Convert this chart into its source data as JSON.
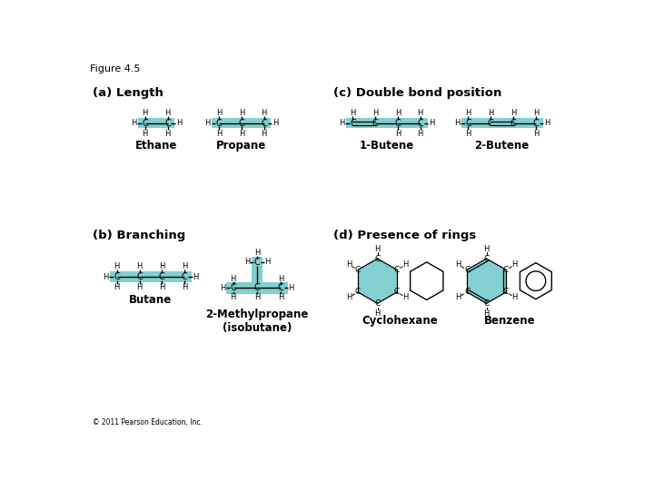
{
  "figure_title": "Figure 4.5",
  "bg_color": "#ffffff",
  "teal_color": "#5BBFBF",
  "teal_alpha": 0.75,
  "section_labels": {
    "a": "(a) Length",
    "b": "(b) Branching",
    "c": "(c) Double bond position",
    "d": "(d) Presence of rings"
  },
  "molecule_labels": {
    "ethane": "Ethane",
    "propane": "Propane",
    "butene1": "1-Butene",
    "butene2": "2-Butene",
    "butane": "Butane",
    "methylpropane": "2-Methylpropane\n(isobutane)",
    "cyclohexane": "Cyclohexane",
    "benzene": "Benzene"
  },
  "copyright": "© 2011 Pearson Education, Inc."
}
